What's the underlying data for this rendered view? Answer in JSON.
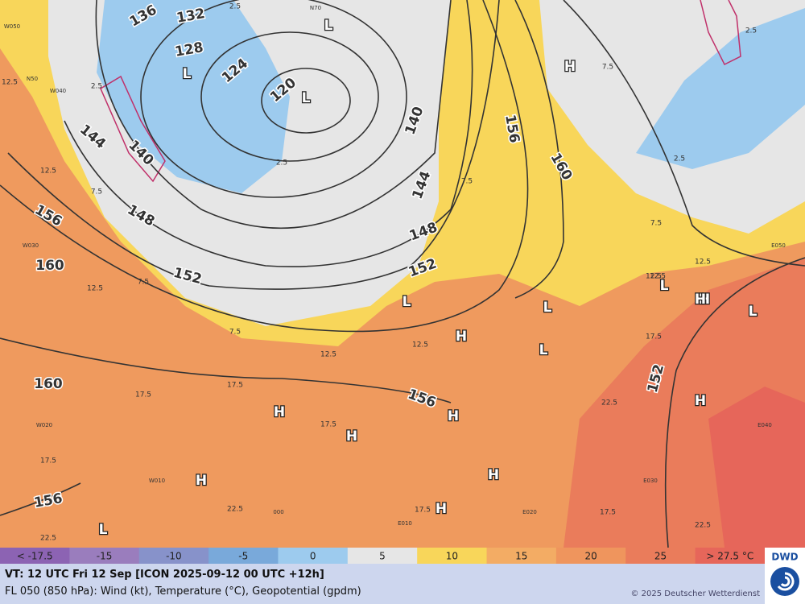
{
  "map": {
    "contour_labels": [
      "136",
      "132",
      "128",
      "124",
      "120",
      "144",
      "140",
      "148",
      "152",
      "156",
      "160",
      "160",
      "156",
      "140",
      "144",
      "148",
      "152",
      "156",
      "160",
      "152",
      "156"
    ],
    "pressure_centers": [
      "L",
      "L",
      "L",
      "H",
      "H",
      "L",
      "L",
      "L",
      "L",
      "H",
      "H",
      "H",
      "H",
      "H",
      "H",
      "H",
      "H",
      "L",
      "H",
      "L"
    ],
    "isotherm_labels": [
      "2.5",
      "2.5",
      "12.5",
      "12.5",
      "7.5",
      "2.5",
      "7.5",
      "12.5",
      "7.5",
      "7.5",
      "12.5",
      "12.5",
      "17.5",
      "17.5",
      "17.5",
      "17.5",
      "12.5",
      "22.5",
      "17.5",
      "17.5",
      "22.5",
      "22.5",
      "17.5",
      "22.5",
      "2.5",
      "7.5",
      "2.5",
      "12.5",
      "12.5",
      "7.5"
    ],
    "flight_levels": [
      "W050",
      "W040",
      "N50",
      "W030",
      "W020",
      "N70",
      "E050",
      "E040",
      "E030",
      "E020",
      "E010",
      "W010",
      "000"
    ]
  },
  "legend": {
    "items": [
      {
        "label": "< -17.5",
        "color": "#8c63b3"
      },
      {
        "label": "-15",
        "color": "#9a7dbd"
      },
      {
        "label": "-10",
        "color": "#8792ca"
      },
      {
        "label": "-5",
        "color": "#79a9da"
      },
      {
        "label": "0",
        "color": "#9dcbee"
      },
      {
        "label": "5",
        "color": "#e6e6e6"
      },
      {
        "label": "10",
        "color": "#f8d65a"
      },
      {
        "label": "15",
        "color": "#f3ac64"
      },
      {
        "label": "20",
        "color": "#ef955d"
      },
      {
        "label": "25",
        "color": "#ea7c5b"
      },
      {
        "label": "> 27.5 °C",
        "color": "#e6665a"
      }
    ]
  },
  "footer": {
    "valid_time": "VT: 12 UTC Fri  12 Sep [ICON 2025-09-12 00 UTC +12h]",
    "description": "FL 050 (850 hPa): Wind (kt), Temperature (°C), Geopotential (gpdm)",
    "copyright": "© 2025 Deutscher Wetterdienst",
    "logo": "DWD"
  }
}
